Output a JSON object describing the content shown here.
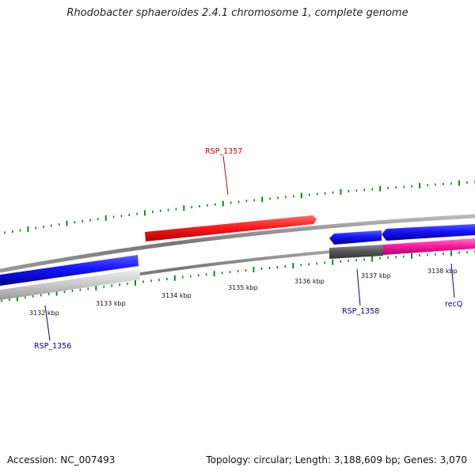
{
  "title": "Rhodobacter sphaeroides 2.4.1 chromosome 1, complete genome",
  "footer": {
    "accession": "Accession: NC_007493",
    "stats": "Topology: circular; Length: 3,188,609 bp; Genes: 3,070"
  },
  "scale": {
    "unit": "kbp",
    "tick_labels": [
      "3132 kbp",
      "3133 kbp",
      "3134 kbp",
      "3135 kbp",
      "3136 kbp",
      "3137 kbp",
      "3138 kbp"
    ]
  },
  "genes": [
    {
      "id": "RSP_1357",
      "label": "RSP_1357",
      "strand": "forward",
      "color": "#e81010"
    },
    {
      "id": "RSP_1356",
      "label": "RSP_1356",
      "strand": "reverse",
      "color": "#1010e8"
    },
    {
      "id": "RSP_1358",
      "label": "RSP_1358",
      "strand": "reverse",
      "color": "#1010e8"
    },
    {
      "id": "recQ",
      "label": "recQ",
      "strand": "reverse",
      "color": "#1010e8"
    }
  ],
  "colors": {
    "forward_label": "#cc0000",
    "reverse_label": "#00009a",
    "tick": "#118811",
    "backbone": "#888888",
    "pink_feature": "#ff1aa0",
    "gray_feature": "#c8c8c8",
    "dark_feature": "#555555"
  }
}
